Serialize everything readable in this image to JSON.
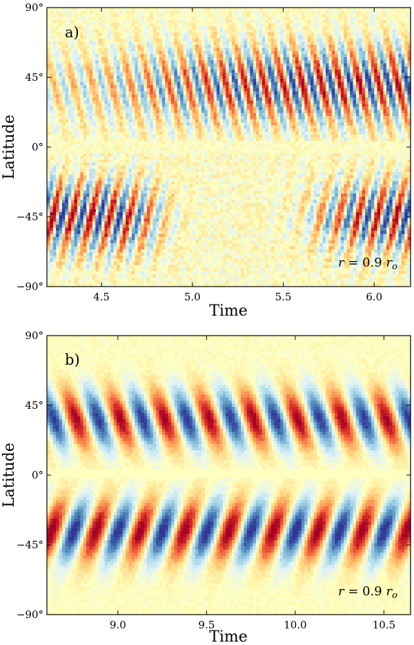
{
  "chart_data": [
    {
      "type": "heatmap",
      "panel_label": "a)",
      "annotation": "r = 0.9 r_o",
      "annotation_parts": {
        "lhs": "r",
        "eq": " = 0.9 ",
        "rhs": "r",
        "sub": "o"
      },
      "xlabel": "Time",
      "ylabel": "Latitude",
      "xlim": [
        4.2,
        6.2
      ],
      "ylim": [
        -90,
        90
      ],
      "xticks": [
        4.5,
        5.0,
        5.5,
        6.0
      ],
      "xtick_labels": [
        "4.5",
        "5.0",
        "5.5",
        "6.0"
      ],
      "yticks": [
        -90,
        -45,
        0,
        45,
        90
      ],
      "ytick_labels": [
        "−90°",
        "−45°",
        "0°",
        "45°",
        "90°"
      ],
      "colormap": [
        "#313695",
        "#4575b4",
        "#74add1",
        "#abd9e9",
        "#e0f3f8",
        "#ffffbf",
        "#fee090",
        "#fdae61",
        "#f46d43",
        "#d73027",
        "#a50026"
      ],
      "grid": false
    },
    {
      "type": "heatmap",
      "panel_label": "b)",
      "annotation": "r = 0.9 r_o",
      "annotation_parts": {
        "lhs": "r",
        "eq": " = 0.9 ",
        "rhs": "r",
        "sub": "o"
      },
      "xlabel": "Time",
      "ylabel": "Latitude",
      "xlim": [
        8.6,
        10.65
      ],
      "ylim": [
        -90,
        90
      ],
      "xticks": [
        9.0,
        9.5,
        10.0,
        10.5
      ],
      "xtick_labels": [
        "9.0",
        "9.5",
        "10.0",
        "10.5"
      ],
      "yticks": [
        -90,
        -45,
        0,
        45,
        90
      ],
      "ytick_labels": [
        "−90°",
        "−45°",
        "0°",
        "45°",
        "90°"
      ],
      "colormap": [
        "#313695",
        "#4575b4",
        "#74add1",
        "#abd9e9",
        "#e0f3f8",
        "#ffffbf",
        "#fee090",
        "#fdae61",
        "#f46d43",
        "#d73027",
        "#a50026"
      ],
      "grid": false
    }
  ]
}
